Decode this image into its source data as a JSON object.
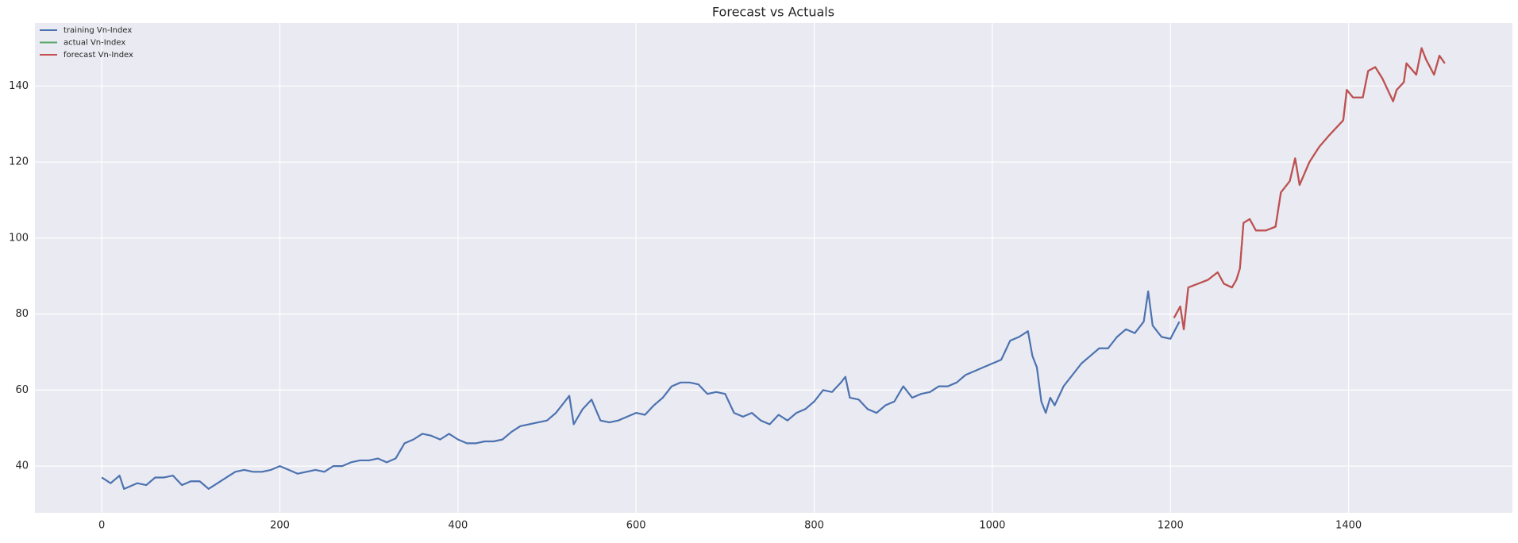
{
  "chart_data": {
    "type": "line",
    "title": "Forecast vs Actuals",
    "xlim": [
      -75,
      1584
    ],
    "ylim": [
      27.7,
      156.6
    ],
    "xticks": [
      0,
      200,
      400,
      600,
      800,
      1000,
      1200,
      1400
    ],
    "yticks": [
      40,
      60,
      80,
      100,
      120,
      140
    ],
    "grid": true,
    "legend": "upper left",
    "series": [
      {
        "name": "training Vn-Index",
        "color": "#4c72b0",
        "x": [
          0,
          10,
          20,
          25,
          30,
          40,
          50,
          60,
          70,
          80,
          90,
          100,
          110,
          120,
          130,
          140,
          150,
          160,
          170,
          180,
          190,
          200,
          210,
          220,
          230,
          240,
          250,
          260,
          270,
          280,
          290,
          300,
          310,
          320,
          330,
          340,
          350,
          360,
          370,
          380,
          390,
          400,
          410,
          420,
          430,
          440,
          450,
          460,
          470,
          480,
          490,
          500,
          510,
          520,
          525,
          530,
          540,
          550,
          560,
          570,
          580,
          590,
          600,
          610,
          620,
          630,
          640,
          650,
          660,
          670,
          680,
          690,
          700,
          710,
          720,
          730,
          740,
          750,
          760,
          770,
          780,
          790,
          800,
          810,
          820,
          830,
          835,
          840,
          850,
          860,
          870,
          880,
          890,
          900,
          910,
          920,
          930,
          940,
          950,
          960,
          970,
          980,
          990,
          1000,
          1010,
          1020,
          1030,
          1040,
          1045,
          1050,
          1055,
          1060,
          1065,
          1070,
          1080,
          1090,
          1100,
          1110,
          1120,
          1130,
          1140,
          1150,
          1160,
          1170,
          1175,
          1180,
          1190,
          1200,
          1210
        ],
        "values": [
          37,
          35.5,
          37.5,
          34,
          34.5,
          35.5,
          35,
          37,
          37,
          37.5,
          35,
          36,
          36,
          34,
          35.5,
          37,
          38.5,
          39,
          38.5,
          38.5,
          39,
          40,
          39,
          38,
          38.5,
          39,
          38.5,
          40,
          40,
          41,
          41.5,
          41.5,
          42,
          41,
          42,
          46,
          47,
          48.5,
          48,
          47,
          48.5,
          47,
          46,
          46,
          46.5,
          46.5,
          47,
          49,
          50.5,
          51,
          51.5,
          52,
          54,
          57,
          58.5,
          51,
          55,
          57.5,
          52,
          51.5,
          52,
          53,
          54,
          53.5,
          56,
          58,
          61,
          62,
          62,
          61.5,
          59,
          59.5,
          59,
          54,
          53,
          54,
          52,
          51,
          53.5,
          52,
          54,
          55,
          57,
          60,
          59.5,
          62,
          63.5,
          58,
          57.5,
          55,
          54,
          56,
          57,
          61,
          58,
          59,
          59.5,
          61,
          61,
          62,
          64,
          65,
          66,
          67,
          68,
          73,
          74,
          75.5,
          69,
          66,
          57,
          54,
          58,
          56,
          61,
          64,
          67,
          69,
          71,
          71,
          74,
          76,
          75,
          78,
          86,
          77,
          74,
          73.5,
          78
        ]
      },
      {
        "name": "actual Vn-Index",
        "color": "#55a868",
        "x": [
          1204,
          1211,
          1215,
          1220,
          1231,
          1242,
          1253,
          1260,
          1269,
          1274,
          1278,
          1282,
          1289,
          1296,
          1307,
          1318,
          1324,
          1334,
          1340,
          1345,
          1356,
          1367,
          1378,
          1394,
          1398,
          1405,
          1416,
          1422,
          1430,
          1438,
          1446,
          1450,
          1454,
          1462,
          1465,
          1476,
          1482,
          1487,
          1496,
          1502,
          1508
        ],
        "values": [
          79,
          82,
          76,
          87,
          88,
          89,
          91,
          88,
          87,
          89,
          92,
          104,
          105,
          102,
          102,
          103,
          112,
          115,
          121,
          114,
          120,
          124,
          127,
          131,
          139,
          137,
          137,
          144,
          145,
          142,
          138,
          136,
          139,
          141,
          146,
          143,
          150,
          147,
          143,
          148,
          146
        ]
      },
      {
        "name": "forecast Vn-Index",
        "color": "#c44e52",
        "x": [
          1204,
          1211,
          1215,
          1220,
          1231,
          1242,
          1253,
          1260,
          1269,
          1274,
          1278,
          1282,
          1289,
          1296,
          1307,
          1318,
          1324,
          1334,
          1340,
          1345,
          1356,
          1367,
          1378,
          1394,
          1398,
          1405,
          1416,
          1422,
          1430,
          1438,
          1446,
          1450,
          1454,
          1462,
          1465,
          1476,
          1482,
          1487,
          1496,
          1502,
          1508
        ],
        "values": [
          79,
          82,
          76,
          87,
          88,
          89,
          91,
          88,
          87,
          89,
          92,
          104,
          105,
          102,
          102,
          103,
          112,
          115,
          121,
          114,
          120,
          124,
          127,
          131,
          139,
          137,
          137,
          144,
          145,
          142,
          138,
          136,
          139,
          141,
          146,
          143,
          150,
          147,
          143,
          148,
          146
        ]
      }
    ]
  }
}
